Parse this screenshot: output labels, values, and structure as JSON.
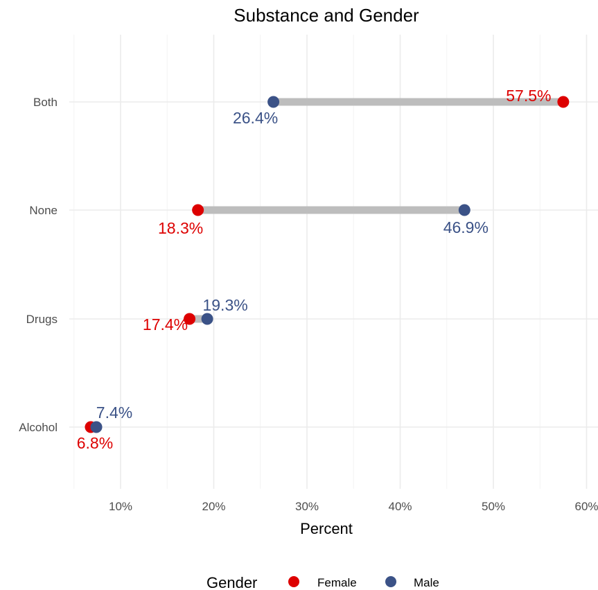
{
  "chart_data": {
    "type": "dumbbell",
    "title": "Substance and Gender",
    "xlabel": "Percent",
    "ylabel": "",
    "xlim": [
      5,
      60
    ],
    "x_ticks": [
      10,
      20,
      30,
      40,
      50,
      60
    ],
    "x_tick_labels": [
      "10%",
      "20%",
      "30%",
      "40%",
      "50%",
      "60%"
    ],
    "categories": [
      "Both",
      "None",
      "Drugs",
      "Alcohol"
    ],
    "grid": true,
    "legend": {
      "title": "Gender",
      "position": "bottom",
      "entries": [
        {
          "name": "Female",
          "color": "#dd0000"
        },
        {
          "name": "Male",
          "color": "#3b5287"
        }
      ]
    },
    "segment_color": "#bdbdbd",
    "series": [
      {
        "name": "Female",
        "color": "#dd0000",
        "values": [
          57.5,
          18.3,
          17.4,
          6.8
        ],
        "labels": [
          "57.5%",
          "18.3%",
          "17.4%",
          "6.8%"
        ]
      },
      {
        "name": "Male",
        "color": "#3b5287",
        "values": [
          26.4,
          46.9,
          19.3,
          7.4
        ],
        "labels": [
          "26.4%",
          "46.9%",
          "19.3%",
          "7.4%"
        ]
      }
    ]
  }
}
